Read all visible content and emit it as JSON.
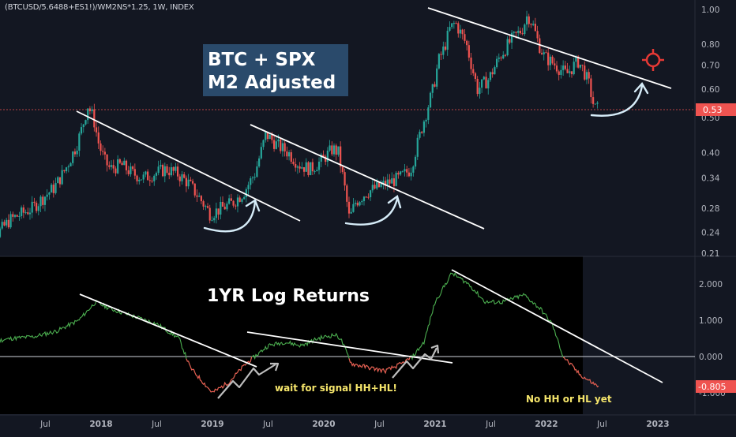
{
  "header": {
    "symbol": "(BTCUSD/5.6488+ES1!)/WM2NS*1.25, 1W, INDEX"
  },
  "annotations": {
    "title_line1": "BTC + SPX",
    "title_line2": "M2 Adjusted",
    "osc_title": "1YR Log Returns",
    "signal_note": "wait for signal HH+HL!",
    "no_hh_note": "No HH or HL yet"
  },
  "colors": {
    "up": "#26a69a",
    "down": "#ef5350",
    "bg": "#131722",
    "osc_bg": "#000000",
    "trend": "#ffffff",
    "arrow": "#d6ecf8",
    "title_box": "#2a4a6b",
    "note": "#f5e56b",
    "target": "#e53935"
  },
  "icons": {
    "target": "crosshair-target-icon"
  },
  "chart_data": [
    {
      "type": "candlestick",
      "scale": "log",
      "ylim": [
        0.21,
        1.05
      ],
      "ticks": [
        "1.00",
        "0.80",
        "0.70",
        "0.60",
        "0.50",
        "0.40",
        "0.34",
        "0.28",
        "0.24",
        "0.21"
      ],
      "tick_values": [
        1.0,
        0.8,
        0.7,
        0.6,
        0.5,
        0.4,
        0.34,
        0.28,
        0.24,
        0.21
      ],
      "last_value": "0.53",
      "x": [
        2017.0,
        2017.1,
        2017.2,
        2017.3,
        2017.4,
        2017.5,
        2017.6,
        2017.7,
        2017.8,
        2017.85,
        2017.9,
        2017.95,
        2018.0,
        2018.05,
        2018.1,
        2018.2,
        2018.3,
        2018.4,
        2018.5,
        2018.6,
        2018.7,
        2018.8,
        2018.9,
        2019.0,
        2019.1,
        2019.2,
        2019.3,
        2019.4,
        2019.5,
        2019.6,
        2019.7,
        2019.8,
        2019.9,
        2020.0,
        2020.1,
        2020.15,
        2020.2,
        2020.25,
        2020.3,
        2020.4,
        2020.5,
        2020.6,
        2020.7,
        2020.8,
        2020.9,
        2021.0,
        2021.05,
        2021.1,
        2021.15,
        2021.2,
        2021.3,
        2021.4,
        2021.45,
        2021.5,
        2021.6,
        2021.7,
        2021.8,
        2021.85,
        2021.9,
        2021.95,
        2022.0,
        2022.1,
        2022.2,
        2022.3,
        2022.35,
        2022.4,
        2022.45
      ],
      "values": [
        0.235,
        0.24,
        0.26,
        0.27,
        0.28,
        0.3,
        0.32,
        0.36,
        0.42,
        0.47,
        0.54,
        0.5,
        0.42,
        0.38,
        0.36,
        0.37,
        0.35,
        0.34,
        0.35,
        0.36,
        0.35,
        0.33,
        0.3,
        0.27,
        0.28,
        0.29,
        0.31,
        0.35,
        0.45,
        0.42,
        0.4,
        0.37,
        0.36,
        0.38,
        0.41,
        0.4,
        0.33,
        0.26,
        0.29,
        0.31,
        0.32,
        0.33,
        0.34,
        0.36,
        0.47,
        0.6,
        0.72,
        0.78,
        0.88,
        0.92,
        0.8,
        0.6,
        0.62,
        0.64,
        0.74,
        0.82,
        0.88,
        0.97,
        0.9,
        0.8,
        0.74,
        0.7,
        0.66,
        0.72,
        0.68,
        0.62,
        0.53
      ]
    },
    {
      "type": "line",
      "series": [
        {
          "values": [
            0.4,
            0.5,
            0.55,
            0.7,
            1.0,
            1.5,
            1.3,
            1.1,
            0.9,
            0.5,
            -0.3,
            -1.0,
            -0.7,
            -0.2,
            0.3,
            0.4,
            0.3,
            0.5,
            0.6,
            0.5,
            -0.2,
            -0.3,
            -0.4,
            -0.2,
            0.0,
            0.4,
            1.5,
            2.3,
            2.0,
            1.5,
            1.5,
            1.7,
            1.3,
            0.9,
            0.0,
            -0.5,
            -0.8
          ],
          "x": [
            2017.0,
            2017.2,
            2017.4,
            2017.6,
            2017.8,
            2017.95,
            2018.1,
            2018.3,
            2018.5,
            2018.7,
            2018.8,
            2019.0,
            2019.15,
            2019.3,
            2019.5,
            2019.65,
            2019.8,
            2019.95,
            2020.1,
            2020.15,
            2020.25,
            2020.4,
            2020.55,
            2020.7,
            2020.8,
            2020.9,
            2021.0,
            2021.15,
            2021.3,
            2021.45,
            2021.6,
            2021.8,
            2021.95,
            2022.05,
            2022.15,
            2022.3,
            2022.45
          ]
        }
      ],
      "ylim": [
        -1.3,
        2.6
      ],
      "ticks": [
        "2.000",
        "1.000",
        "0.000",
        "-1.000"
      ],
      "tick_values": [
        2.0,
        1.0,
        0.0,
        -1.0
      ],
      "last_value": "-0.805"
    }
  ],
  "x_axis": {
    "labels": [
      "Jul",
      "2018",
      "Jul",
      "2019",
      "Jul",
      "2020",
      "Jul",
      "2021",
      "Jul",
      "2022",
      "Jul",
      "2023"
    ]
  }
}
